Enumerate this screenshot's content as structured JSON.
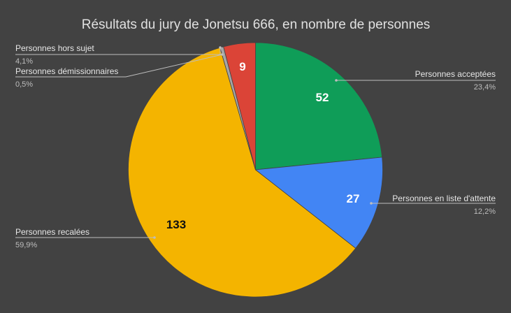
{
  "chart_data": {
    "type": "pie",
    "title": "Résultats du jury de Jonetsu 666, en nombre de personnes",
    "slices": [
      {
        "label": "Personnes acceptées",
        "value": 52,
        "percent": "23,4%",
        "color": "#0f9d58",
        "value_label": "52",
        "value_color": "#ffffff"
      },
      {
        "label": "Personnes en liste d'attente",
        "value": 27,
        "percent": "12,2%",
        "color": "#4285f4",
        "value_label": "27",
        "value_color": "#ffffff"
      },
      {
        "label": "Personnes recalées",
        "value": 133,
        "percent": "59,9%",
        "color": "#f4b400",
        "value_label": "133",
        "value_color": "#111111"
      },
      {
        "label": "Personnes démissionnaires",
        "value": 1,
        "percent": "0,5%",
        "color": "#a6a6a6",
        "value_label": "",
        "value_color": "#ffffff"
      },
      {
        "label": "Personnes hors sujet",
        "value": 9,
        "percent": "4,1%",
        "color": "#db4437",
        "value_label": "9",
        "value_color": "#ffffff"
      }
    ],
    "legend": "none"
  }
}
